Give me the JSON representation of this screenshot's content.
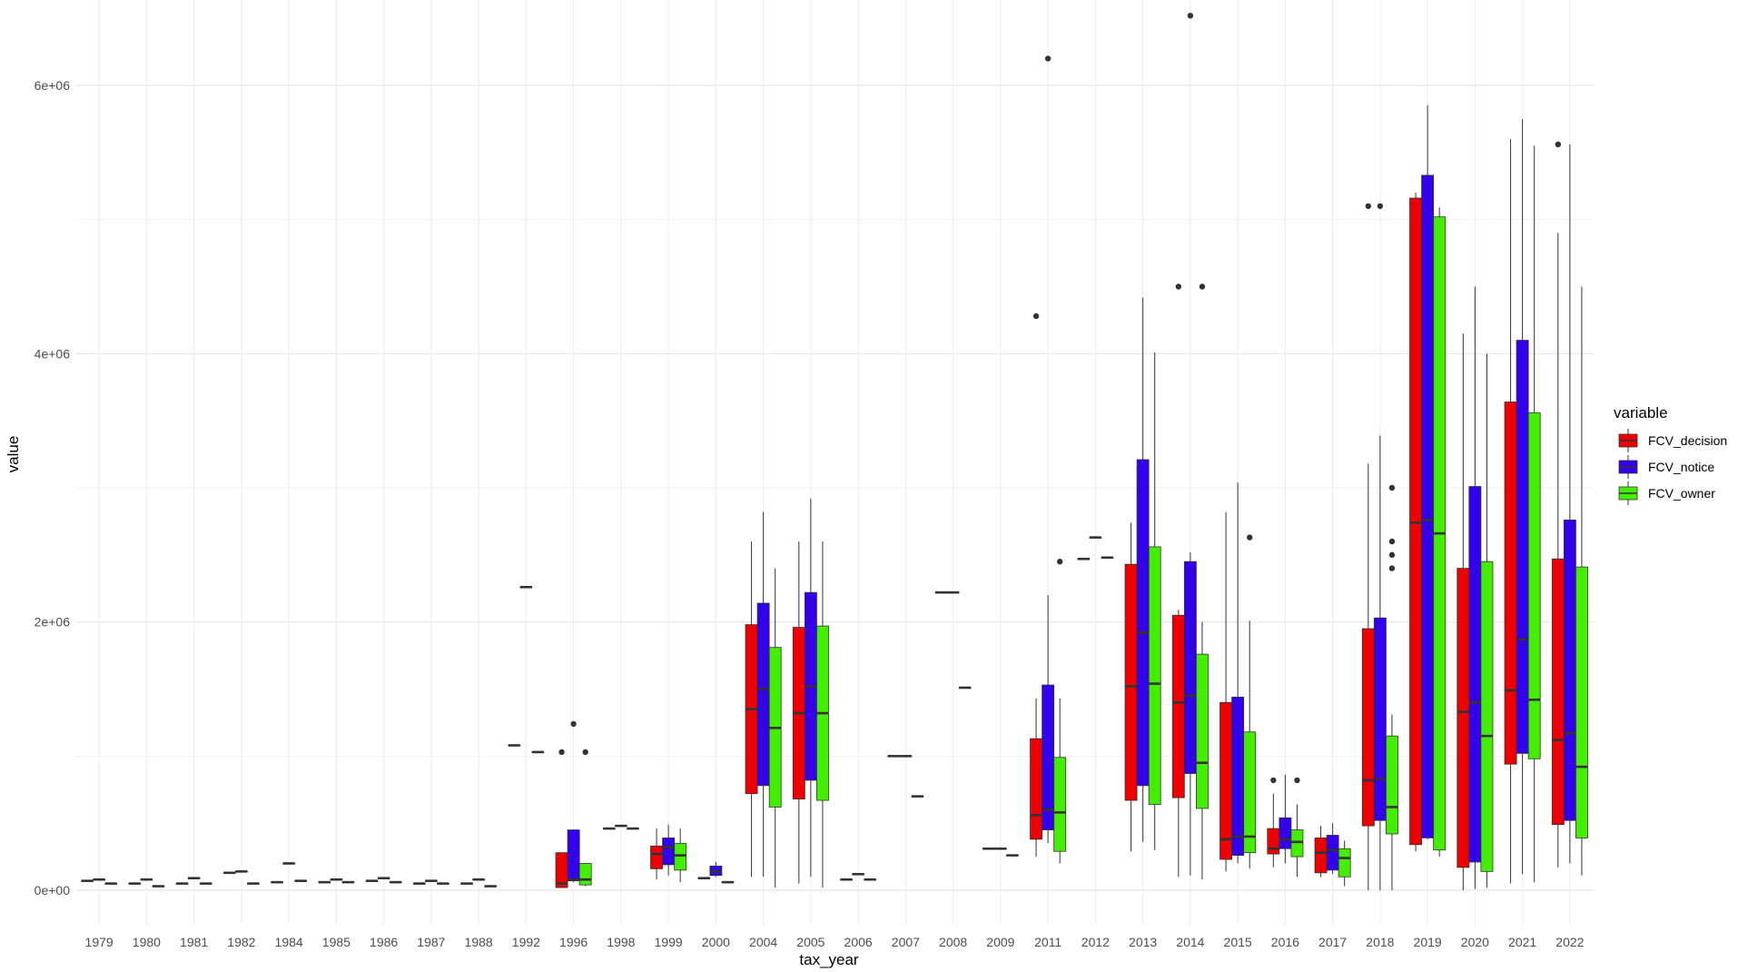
{
  "chart_data": {
    "type": "boxplot",
    "xlabel": "tax_year",
    "ylabel": "value",
    "ylim": [
      -250000,
      6500000
    ],
    "y_ticks": [
      0,
      2000000,
      4000000,
      6000000
    ],
    "y_tick_labels": [
      "0e+00",
      "2e+06",
      "4e+06",
      "6e+06"
    ],
    "grid": true,
    "legend": {
      "title": "variable",
      "placement": "right",
      "entries": [
        "FCV_decision",
        "FCV_notice",
        "FCV_owner"
      ]
    },
    "colors": {
      "FCV_decision": "#ee0000",
      "FCV_notice": "#3300ee",
      "FCV_owner": "#44ee00"
    },
    "categories": [
      "1979",
      "1980",
      "1981",
      "1982",
      "1984",
      "1985",
      "1986",
      "1987",
      "1988",
      "1992",
      "1996",
      "1998",
      "1999",
      "2000",
      "2004",
      "2005",
      "2006",
      "2007",
      "2008",
      "2009",
      "2011",
      "2012",
      "2013",
      "2014",
      "2015",
      "2016",
      "2017",
      "2018",
      "2019",
      "2020",
      "2021",
      "2022"
    ],
    "series": [
      {
        "name": "FCV_decision",
        "boxes": [
          [
            70000,
            70000,
            70000,
            70000,
            70000,
            []
          ],
          [
            50000,
            50000,
            50000,
            50000,
            50000,
            []
          ],
          [
            50000,
            50000,
            50000,
            50000,
            50000,
            []
          ],
          [
            130000,
            130000,
            130000,
            130000,
            130000,
            []
          ],
          [
            60000,
            60000,
            60000,
            60000,
            60000,
            []
          ],
          [
            60000,
            60000,
            60000,
            60000,
            60000,
            []
          ],
          [
            70000,
            70000,
            70000,
            70000,
            70000,
            []
          ],
          [
            50000,
            50000,
            50000,
            50000,
            50000,
            []
          ],
          [
            50000,
            50000,
            50000,
            50000,
            50000,
            []
          ],
          [
            1080000,
            1080000,
            1080000,
            1080000,
            1080000,
            []
          ],
          [
            20000,
            20000,
            50000,
            280000,
            280000,
            [
              1030000
            ]
          ],
          [
            460000,
            460000,
            460000,
            460000,
            460000,
            []
          ],
          [
            80000,
            160000,
            270000,
            330000,
            460000,
            []
          ],
          [
            90000,
            90000,
            90000,
            90000,
            90000,
            []
          ],
          [
            100000,
            720000,
            1350000,
            1980000,
            2600000,
            []
          ],
          [
            50000,
            680000,
            1320000,
            1960000,
            2600000,
            []
          ],
          [
            80000,
            80000,
            80000,
            80000,
            80000,
            []
          ],
          [
            1000000,
            1000000,
            1000000,
            1000000,
            1000000,
            []
          ],
          [
            2220000,
            2220000,
            2220000,
            2220000,
            2220000,
            []
          ],
          [
            310000,
            310000,
            310000,
            310000,
            310000,
            []
          ],
          [
            250000,
            380000,
            560000,
            1130000,
            1430000,
            [
              4280000
            ]
          ],
          [
            2470000,
            2470000,
            2470000,
            2470000,
            2470000,
            []
          ],
          [
            290000,
            670000,
            1520000,
            2430000,
            2740000,
            []
          ],
          [
            100000,
            690000,
            1400000,
            2050000,
            2090000,
            [
              4500000
            ]
          ],
          [
            140000,
            230000,
            380000,
            1400000,
            2820000,
            []
          ],
          [
            170000,
            270000,
            310000,
            460000,
            720000,
            [
              820000
            ]
          ],
          [
            100000,
            130000,
            280000,
            390000,
            480000,
            []
          ],
          [
            0,
            480000,
            820000,
            1950000,
            3180000,
            [
              5100000
            ]
          ],
          [
            290000,
            340000,
            2740000,
            5160000,
            5200000,
            []
          ],
          [
            0,
            170000,
            1330000,
            2400000,
            4150000,
            []
          ],
          [
            50000,
            940000,
            1490000,
            3640000,
            5600000,
            []
          ],
          [
            170000,
            490000,
            1120000,
            2470000,
            4900000,
            [
              5560000
            ]
          ]
        ]
      },
      {
        "name": "FCV_notice",
        "boxes": [
          [
            80000,
            80000,
            80000,
            80000,
            80000,
            []
          ],
          [
            80000,
            80000,
            80000,
            80000,
            80000,
            []
          ],
          [
            90000,
            90000,
            90000,
            90000,
            90000,
            []
          ],
          [
            140000,
            140000,
            140000,
            140000,
            140000,
            []
          ],
          [
            200000,
            200000,
            200000,
            200000,
            200000,
            []
          ],
          [
            80000,
            80000,
            80000,
            80000,
            80000,
            []
          ],
          [
            90000,
            90000,
            90000,
            90000,
            90000,
            []
          ],
          [
            70000,
            70000,
            70000,
            70000,
            70000,
            []
          ],
          [
            80000,
            80000,
            80000,
            80000,
            80000,
            []
          ],
          [
            2260000,
            2260000,
            2260000,
            2260000,
            2260000,
            []
          ],
          [
            60000,
            70000,
            80000,
            450000,
            450000,
            [
              1240000
            ]
          ],
          [
            480000,
            480000,
            480000,
            480000,
            480000,
            []
          ],
          [
            110000,
            190000,
            320000,
            390000,
            490000,
            []
          ],
          [
            100000,
            110000,
            140000,
            180000,
            210000,
            []
          ],
          [
            100000,
            780000,
            1500000,
            2140000,
            2820000,
            []
          ],
          [
            100000,
            820000,
            1520000,
            2220000,
            2920000,
            []
          ],
          [
            120000,
            120000,
            120000,
            120000,
            120000,
            []
          ],
          [
            1000000,
            1000000,
            1000000,
            1000000,
            1000000,
            []
          ],
          [
            2220000,
            2220000,
            2220000,
            2220000,
            2220000,
            []
          ],
          [
            310000,
            310000,
            310000,
            310000,
            310000,
            []
          ],
          [
            350000,
            450000,
            600000,
            1530000,
            2200000,
            [
              6200000
            ]
          ],
          [
            2630000,
            2630000,
            2630000,
            2630000,
            2630000,
            []
          ],
          [
            360000,
            780000,
            1920000,
            3210000,
            4420000,
            []
          ],
          [
            110000,
            870000,
            1450000,
            2450000,
            2520000,
            [
              6520000
            ]
          ],
          [
            200000,
            260000,
            400000,
            1440000,
            3040000,
            []
          ],
          [
            200000,
            310000,
            380000,
            540000,
            860000,
            []
          ],
          [
            120000,
            150000,
            300000,
            410000,
            500000,
            []
          ],
          [
            0,
            520000,
            830000,
            2030000,
            3390000,
            [
              5100000
            ]
          ],
          [
            380000,
            390000,
            2760000,
            5330000,
            5850000,
            []
          ],
          [
            10000,
            210000,
            1400000,
            3010000,
            4500000,
            []
          ],
          [
            120000,
            1020000,
            1870000,
            4100000,
            5750000,
            []
          ],
          [
            200000,
            520000,
            1170000,
            2760000,
            5560000,
            []
          ]
        ]
      },
      {
        "name": "FCV_owner",
        "boxes": [
          [
            50000,
            50000,
            50000,
            50000,
            50000,
            []
          ],
          [
            30000,
            30000,
            30000,
            30000,
            30000,
            []
          ],
          [
            50000,
            50000,
            50000,
            50000,
            50000,
            []
          ],
          [
            50000,
            50000,
            50000,
            50000,
            50000,
            []
          ],
          [
            70000,
            70000,
            70000,
            70000,
            70000,
            []
          ],
          [
            60000,
            60000,
            60000,
            60000,
            60000,
            []
          ],
          [
            60000,
            60000,
            60000,
            60000,
            60000,
            []
          ],
          [
            50000,
            50000,
            50000,
            50000,
            50000,
            []
          ],
          [
            30000,
            30000,
            30000,
            30000,
            30000,
            []
          ],
          [
            1030000,
            1030000,
            1030000,
            1030000,
            1030000,
            []
          ],
          [
            30000,
            40000,
            80000,
            200000,
            200000,
            [
              1030000
            ]
          ],
          [
            460000,
            460000,
            460000,
            460000,
            460000,
            []
          ],
          [
            60000,
            150000,
            260000,
            350000,
            460000,
            []
          ],
          [
            60000,
            60000,
            60000,
            60000,
            60000,
            []
          ],
          [
            20000,
            620000,
            1210000,
            1810000,
            2400000,
            []
          ],
          [
            20000,
            670000,
            1320000,
            1970000,
            2600000,
            []
          ],
          [
            80000,
            80000,
            80000,
            80000,
            80000,
            []
          ],
          [
            700000,
            700000,
            700000,
            700000,
            700000,
            []
          ],
          [
            1510000,
            1510000,
            1510000,
            1510000,
            1510000,
            []
          ],
          [
            260000,
            260000,
            260000,
            260000,
            260000,
            []
          ],
          [
            200000,
            290000,
            580000,
            990000,
            1430000,
            [
              2450000
            ]
          ],
          [
            2480000,
            2480000,
            2480000,
            2480000,
            2480000,
            []
          ],
          [
            300000,
            640000,
            1540000,
            2560000,
            4010000,
            []
          ],
          [
            80000,
            610000,
            950000,
            1760000,
            2000000,
            [
              4500000
            ]
          ],
          [
            160000,
            280000,
            400000,
            1180000,
            2010000,
            [
              2630000
            ]
          ],
          [
            100000,
            250000,
            360000,
            450000,
            640000,
            [
              820000
            ]
          ],
          [
            30000,
            100000,
            240000,
            310000,
            370000,
            []
          ],
          [
            0,
            420000,
            620000,
            1150000,
            1310000,
            [
              2400000,
              2500000,
              2600000,
              3000000
            ]
          ],
          [
            250000,
            300000,
            2660000,
            5020000,
            5090000,
            []
          ],
          [
            20000,
            140000,
            1150000,
            2450000,
            4000000,
            []
          ],
          [
            60000,
            980000,
            1420000,
            3560000,
            5550000,
            []
          ],
          [
            110000,
            390000,
            920000,
            2410000,
            4500000,
            []
          ]
        ]
      }
    ]
  }
}
